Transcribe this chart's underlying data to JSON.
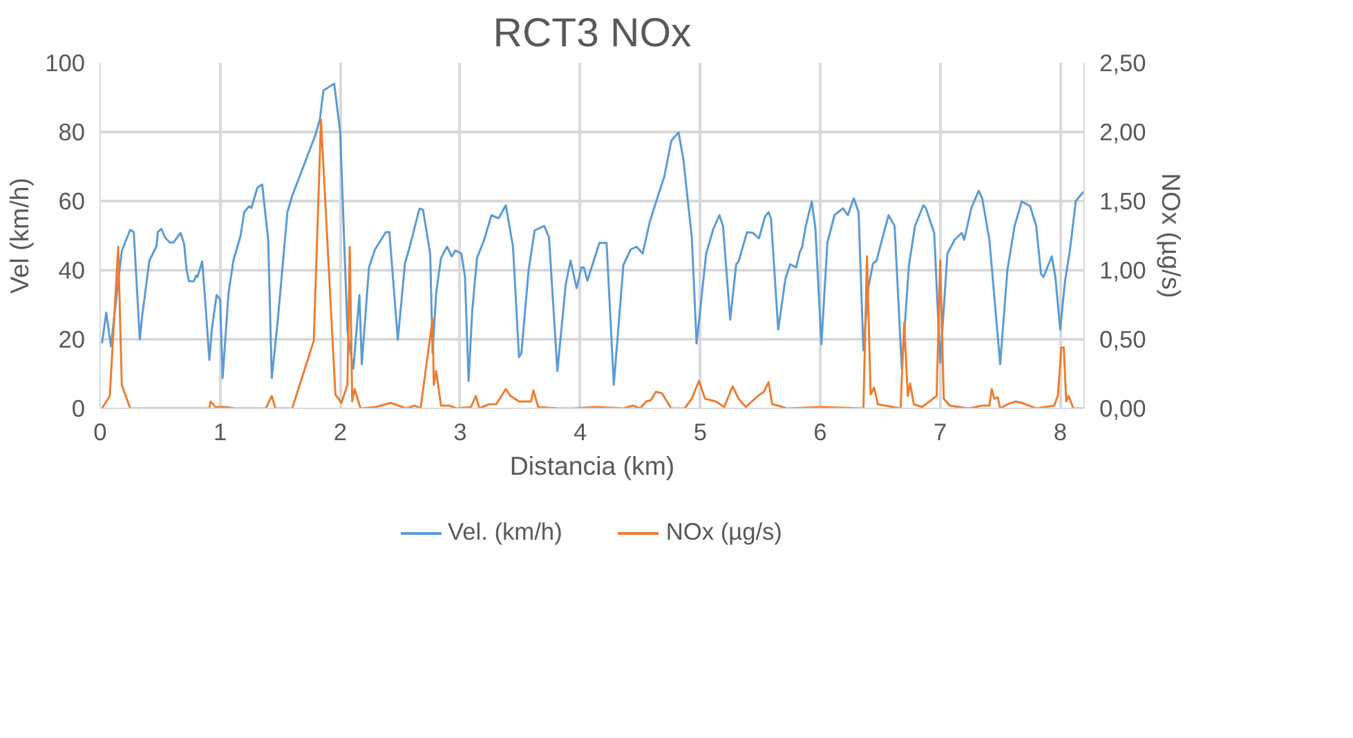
{
  "chart_data": {
    "type": "line",
    "title": "RCT3 NOx",
    "xlabel": "Distancia (km)",
    "ylabel": "Vel (km/h)",
    "y2label": "NOx (µg/s)",
    "xlim": [
      0,
      8.2
    ],
    "xticks": [
      0,
      1,
      2,
      3,
      4,
      5,
      6,
      7,
      8
    ],
    "ylim": [
      0,
      100
    ],
    "yticks": [
      0,
      20,
      40,
      60,
      80,
      100
    ],
    "y2lim": [
      0,
      2.5
    ],
    "y2ticks": [
      {
        "value": 0,
        "label": "0,00"
      },
      {
        "value": 0.5,
        "label": "0,50"
      },
      {
        "value": 1,
        "label": "1,00"
      },
      {
        "value": 1.5,
        "label": "1,50"
      },
      {
        "value": 2,
        "label": "2,00"
      },
      {
        "value": 2.5,
        "label": "2,50"
      }
    ],
    "grid": true,
    "legend": "bottom",
    "marker": "none",
    "line_style": "solid",
    "series": [
      {
        "name": "Vel. (km/h)",
        "color": "#5b9bd5",
        "x": [
          0.015,
          0.05,
          0.09,
          0.14,
          0.18,
          0.25,
          0.28,
          0.33,
          0.35,
          0.41,
          0.47,
          0.48,
          0.51,
          0.54,
          0.58,
          0.61,
          0.67,
          0.7,
          0.72,
          0.74,
          0.78,
          0.8,
          0.81,
          0.85,
          0.87,
          0.91,
          0.93,
          0.97,
          1.0,
          1.02,
          1.07,
          1.11,
          1.17,
          1.2,
          1.24,
          1.26,
          1.31,
          1.35,
          1.4,
          1.43,
          1.48,
          1.56,
          1.6,
          1.79,
          1.83,
          1.86,
          1.95,
          2.0,
          2.06,
          2.08,
          2.11,
          2.16,
          2.18,
          2.24,
          2.29,
          2.38,
          2.41,
          2.48,
          2.54,
          2.58,
          2.66,
          2.69,
          2.75,
          2.77,
          2.8,
          2.84,
          2.89,
          2.93,
          2.96,
          3.01,
          3.04,
          3.07,
          3.1,
          3.14,
          3.2,
          3.26,
          3.32,
          3.38,
          3.44,
          3.49,
          3.51,
          3.57,
          3.62,
          3.7,
          3.74,
          3.81,
          3.88,
          3.92,
          3.97,
          4.01,
          4.03,
          4.06,
          4.12,
          4.16,
          4.22,
          4.28,
          4.36,
          4.42,
          4.47,
          4.52,
          4.58,
          4.66,
          4.7,
          4.76,
          4.82,
          4.86,
          4.93,
          4.97,
          5.05,
          5.11,
          5.16,
          5.19,
          5.25,
          5.3,
          5.32,
          5.39,
          5.44,
          5.49,
          5.54,
          5.57,
          5.59,
          5.65,
          5.71,
          5.75,
          5.8,
          5.83,
          5.85,
          5.88,
          5.93,
          5.96,
          6.01,
          6.06,
          6.12,
          6.19,
          6.23,
          6.28,
          6.32,
          6.36,
          6.4,
          6.44,
          6.47,
          6.52,
          6.57,
          6.62,
          6.68,
          6.74,
          6.79,
          6.86,
          6.88,
          6.95,
          7.0,
          7.06,
          7.12,
          7.18,
          7.2,
          7.26,
          7.32,
          7.35,
          7.41,
          7.5,
          7.56,
          7.62,
          7.68,
          7.75,
          7.8,
          7.84,
          7.86,
          7.93,
          7.96,
          8.0,
          8.04,
          8.08,
          8.13,
          8.17,
          8.2
        ],
        "values": [
          18.8,
          27.7,
          18,
          33.6,
          45.6,
          51.7,
          51,
          20,
          26.8,
          42.8,
          47,
          51,
          52,
          49.5,
          48,
          48,
          50.8,
          47.5,
          40,
          36.8,
          36.8,
          38.5,
          38,
          42.5,
          33.6,
          14,
          22.8,
          32.8,
          31.5,
          8.8,
          33.5,
          42.8,
          50,
          56.8,
          58.5,
          58,
          63.9,
          64.8,
          48.8,
          8.8,
          25.5,
          56.8,
          61.5,
          78.8,
          83.5,
          92,
          94,
          80,
          22.8,
          17.5,
          11.5,
          32.8,
          12.8,
          40.8,
          46,
          51,
          51,
          19.9,
          42,
          46.8,
          57.8,
          57.5,
          44.8,
          16,
          33.5,
          43.5,
          46.8,
          44,
          45.7,
          44.8,
          38,
          7.9,
          28,
          43.5,
          48.8,
          55.9,
          55,
          58.8,
          46.8,
          14.8,
          16,
          40,
          51.5,
          52.8,
          49.5,
          10.8,
          36,
          42.8,
          34.8,
          40.8,
          40.8,
          37,
          43.5,
          47.9,
          47.9,
          6.8,
          41.5,
          46,
          46.8,
          44.8,
          54,
          62.8,
          67,
          77.5,
          79.9,
          72,
          49.5,
          18.8,
          44.8,
          52,
          55.9,
          52.8,
          25.7,
          41.7,
          42.5,
          51,
          50.8,
          49.2,
          55.5,
          56.8,
          55,
          22.8,
          37.5,
          41.7,
          40.8,
          45.2,
          46.8,
          52.8,
          59.9,
          52,
          18.5,
          48,
          56,
          57.9,
          55.9,
          60.8,
          56.8,
          16.8,
          34.8,
          41.9,
          42.8,
          49.5,
          55.9,
          52.8,
          11.5,
          41.5,
          52.8,
          58.8,
          58,
          50.8,
          13.2,
          44.8,
          48.8,
          50.8,
          48.8,
          58,
          63,
          60.8,
          48.8,
          12.8,
          40,
          52.8,
          59.9,
          58.5,
          52.8,
          39,
          38,
          44,
          38,
          22.8,
          36.8,
          45.5,
          60,
          61.7,
          62.8
        ]
      },
      {
        "name": "NOx (µg/s)",
        "color": "#ed7d31",
        "axis": "y2",
        "x": [
          0.015,
          0.08,
          0.15,
          0.18,
          0.25,
          0.91,
          0.92,
          0.96,
          1.05,
          1.12,
          1.38,
          1.43,
          1.46,
          1.6,
          1.78,
          1.84,
          1.96,
          2.01,
          2.06,
          2.08,
          2.1,
          2.12,
          2.17,
          2.3,
          2.42,
          2.55,
          2.62,
          2.67,
          2.77,
          2.78,
          2.8,
          2.84,
          2.91,
          2.97,
          3.09,
          3.13,
          3.16,
          3.24,
          3.3,
          3.38,
          3.42,
          3.49,
          3.59,
          3.61,
          3.65,
          3.82,
          3.94,
          4.13,
          4.36,
          4.44,
          4.5,
          4.55,
          4.59,
          4.63,
          4.68,
          4.76,
          4.87,
          4.93,
          4.99,
          5.04,
          5.13,
          5.2,
          5.27,
          5.32,
          5.38,
          5.48,
          5.53,
          5.57,
          5.6,
          5.65,
          5.72,
          6.01,
          6.36,
          6.39,
          6.42,
          6.45,
          6.48,
          6.67,
          6.68,
          6.7,
          6.73,
          6.75,
          6.78,
          6.85,
          6.97,
          7.0,
          7.03,
          7.08,
          7.24,
          7.35,
          7.41,
          7.43,
          7.45,
          7.48,
          7.5,
          7.56,
          7.63,
          7.68,
          7.8,
          7.95,
          7.98,
          8.01,
          8.03,
          8.05,
          8.07,
          8.11,
          8.2
        ],
        "values": [
          0,
          0.09,
          1.17,
          0.17,
          0,
          0,
          0.05,
          0.01,
          0.01,
          0,
          0,
          0.09,
          0,
          0,
          0.49,
          2.09,
          0.1,
          0.04,
          0.17,
          1.17,
          0.05,
          0.14,
          0,
          0.01,
          0.04,
          0,
          0.02,
          0,
          0.65,
          0.17,
          0.27,
          0.02,
          0.02,
          0,
          0.01,
          0.09,
          0,
          0.03,
          0.03,
          0.14,
          0.09,
          0.05,
          0.05,
          0.13,
          0.01,
          0,
          0,
          0.01,
          0,
          0.02,
          0,
          0.05,
          0.06,
          0.12,
          0.11,
          0,
          0,
          0.07,
          0.2,
          0.07,
          0.05,
          0.01,
          0.16,
          0.07,
          0.01,
          0.09,
          0.12,
          0.19,
          0.03,
          0.02,
          0,
          0.01,
          0,
          1.1,
          0.1,
          0.15,
          0.03,
          0,
          0.22,
          0.62,
          0.09,
          0.18,
          0.03,
          0.01,
          0.09,
          1.07,
          0.07,
          0.02,
          0,
          0.02,
          0.02,
          0.14,
          0.07,
          0.08,
          0,
          0.03,
          0.05,
          0.04,
          0,
          0.02,
          0.09,
          0.44,
          0.44,
          0.05,
          0.09,
          0,
          0
        ]
      }
    ]
  }
}
